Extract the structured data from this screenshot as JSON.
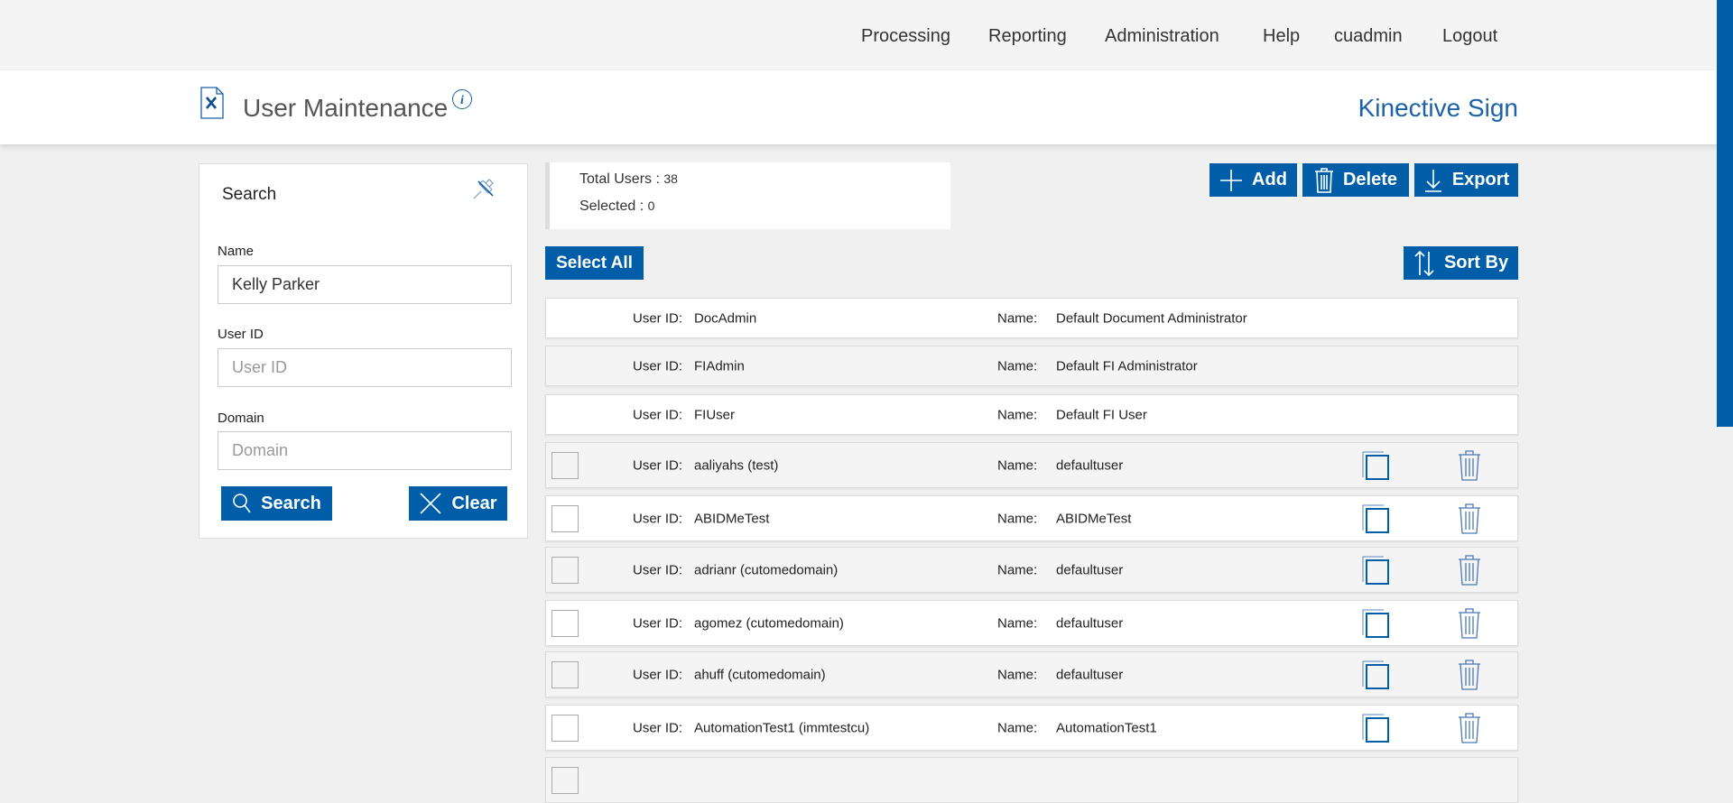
{
  "nav": {
    "items": [
      "Processing",
      "Reporting",
      "Administration",
      "Help",
      "cuadmin",
      "Logout"
    ]
  },
  "header": {
    "title": "User Maintenance",
    "brand": "Kinective Sign",
    "icon": "document-wrench-icon",
    "info_icon": "info-icon"
  },
  "colors": {
    "accent": "#005ea8",
    "brand_text": "#1b62a8"
  },
  "search": {
    "title": "Search",
    "name_label": "Name",
    "name_value": "Kelly Parker",
    "userid_label": "User ID",
    "userid_placeholder": "User ID",
    "domain_label": "Domain",
    "domain_placeholder": "Domain",
    "search_button": "Search",
    "clear_button": "Clear"
  },
  "stats": {
    "total_label": "Total Users :",
    "total_value": "38",
    "selected_label": "Selected :",
    "selected_value": "0"
  },
  "toolbar": {
    "add": "Add",
    "delete": "Delete",
    "export": "Export",
    "select_all": "Select All",
    "sort_by": "Sort By"
  },
  "list": {
    "userid_label": "User ID:",
    "name_label": "Name:",
    "rows": [
      {
        "user_id": "DocAdmin",
        "name": "Default Document Administrator",
        "selectable": false
      },
      {
        "user_id": "FIAdmin",
        "name": "Default FI Administrator",
        "selectable": false
      },
      {
        "user_id": "FIUser",
        "name": "Default FI User",
        "selectable": false
      },
      {
        "user_id": "aaliyahs (test)",
        "name": "defaultuser",
        "selectable": true
      },
      {
        "user_id": "ABIDMeTest",
        "name": "ABIDMeTest",
        "selectable": true
      },
      {
        "user_id": "adrianr (cutomedomain)",
        "name": "defaultuser",
        "selectable": true
      },
      {
        "user_id": "agomez (cutomedomain)",
        "name": "defaultuser",
        "selectable": true
      },
      {
        "user_id": "ahuff (cutomedomain)",
        "name": "defaultuser",
        "selectable": true
      },
      {
        "user_id": "AutomationTest1 (immtestcu)",
        "name": "AutomationTest1",
        "selectable": true
      }
    ]
  }
}
